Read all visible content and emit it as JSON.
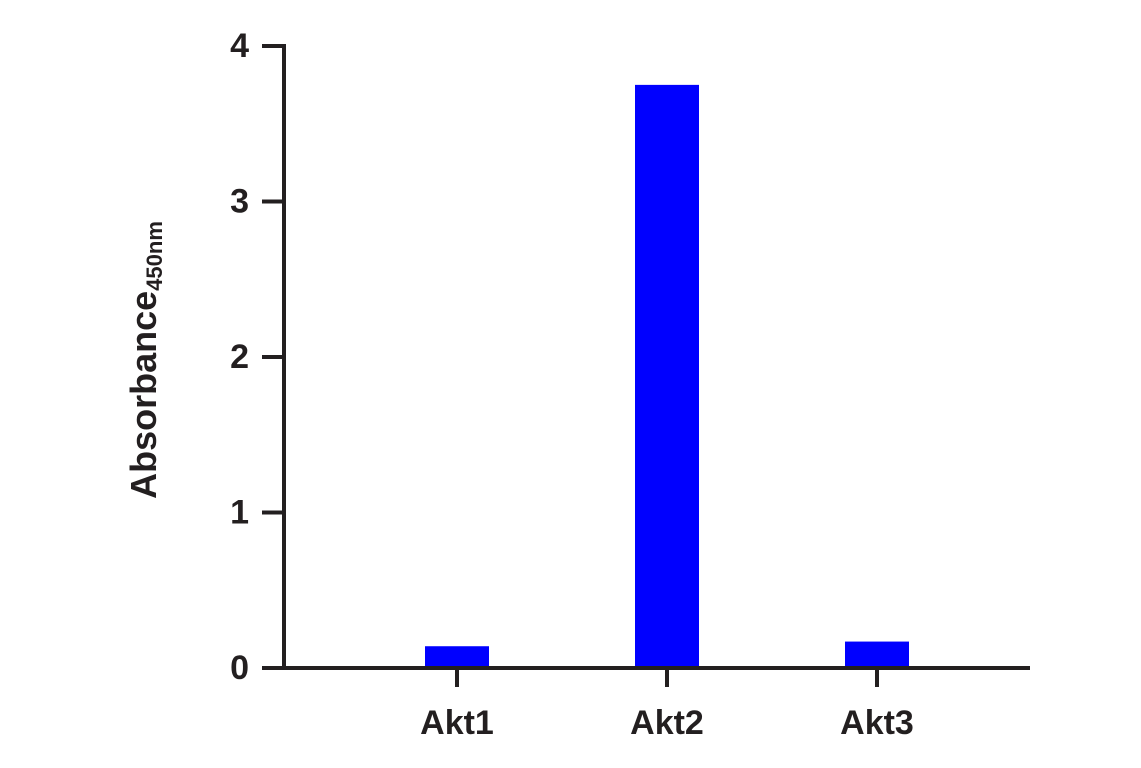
{
  "chart_data": {
    "type": "bar",
    "y_label": "Absorbance",
    "y_label_subscript": "450nm",
    "categories": [
      "Akt1",
      "Akt2",
      "Akt3"
    ],
    "values": [
      0.14,
      3.75,
      0.17
    ],
    "color": "#0000ff",
    "ylim": [
      0,
      4
    ],
    "yticks": [
      0,
      1,
      2,
      3,
      4
    ]
  }
}
